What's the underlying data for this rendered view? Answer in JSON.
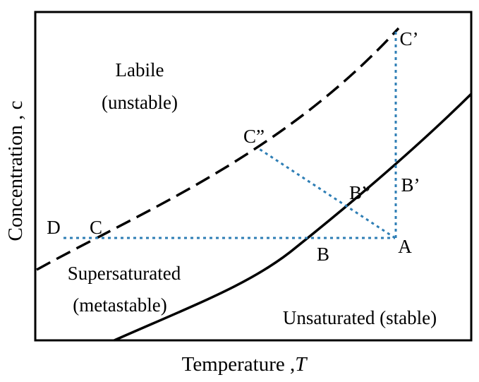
{
  "colors": {
    "curve": "#000000",
    "path": "#2e7eb5",
    "frame": "#000000",
    "background": "#ffffff"
  },
  "axes": {
    "x_label": "Temperature ,",
    "x_symbol": "T",
    "y_label": "Concentration , c"
  },
  "regions": {
    "labile_line1": "Labile",
    "labile_line2": "(unstable)",
    "supersaturated_line1": "Supersaturated",
    "supersaturated_line2": "(metastable)",
    "unsaturated": "Unsaturated (stable)"
  },
  "points": {
    "A": "A",
    "B": "B",
    "C": "C",
    "D": "D",
    "B_prime": "B’",
    "C_prime": "C’",
    "B_double": "B”",
    "C_double": "C”"
  },
  "curves": {
    "solubility": "solid-line",
    "supersolubility": "dashed-line"
  }
}
